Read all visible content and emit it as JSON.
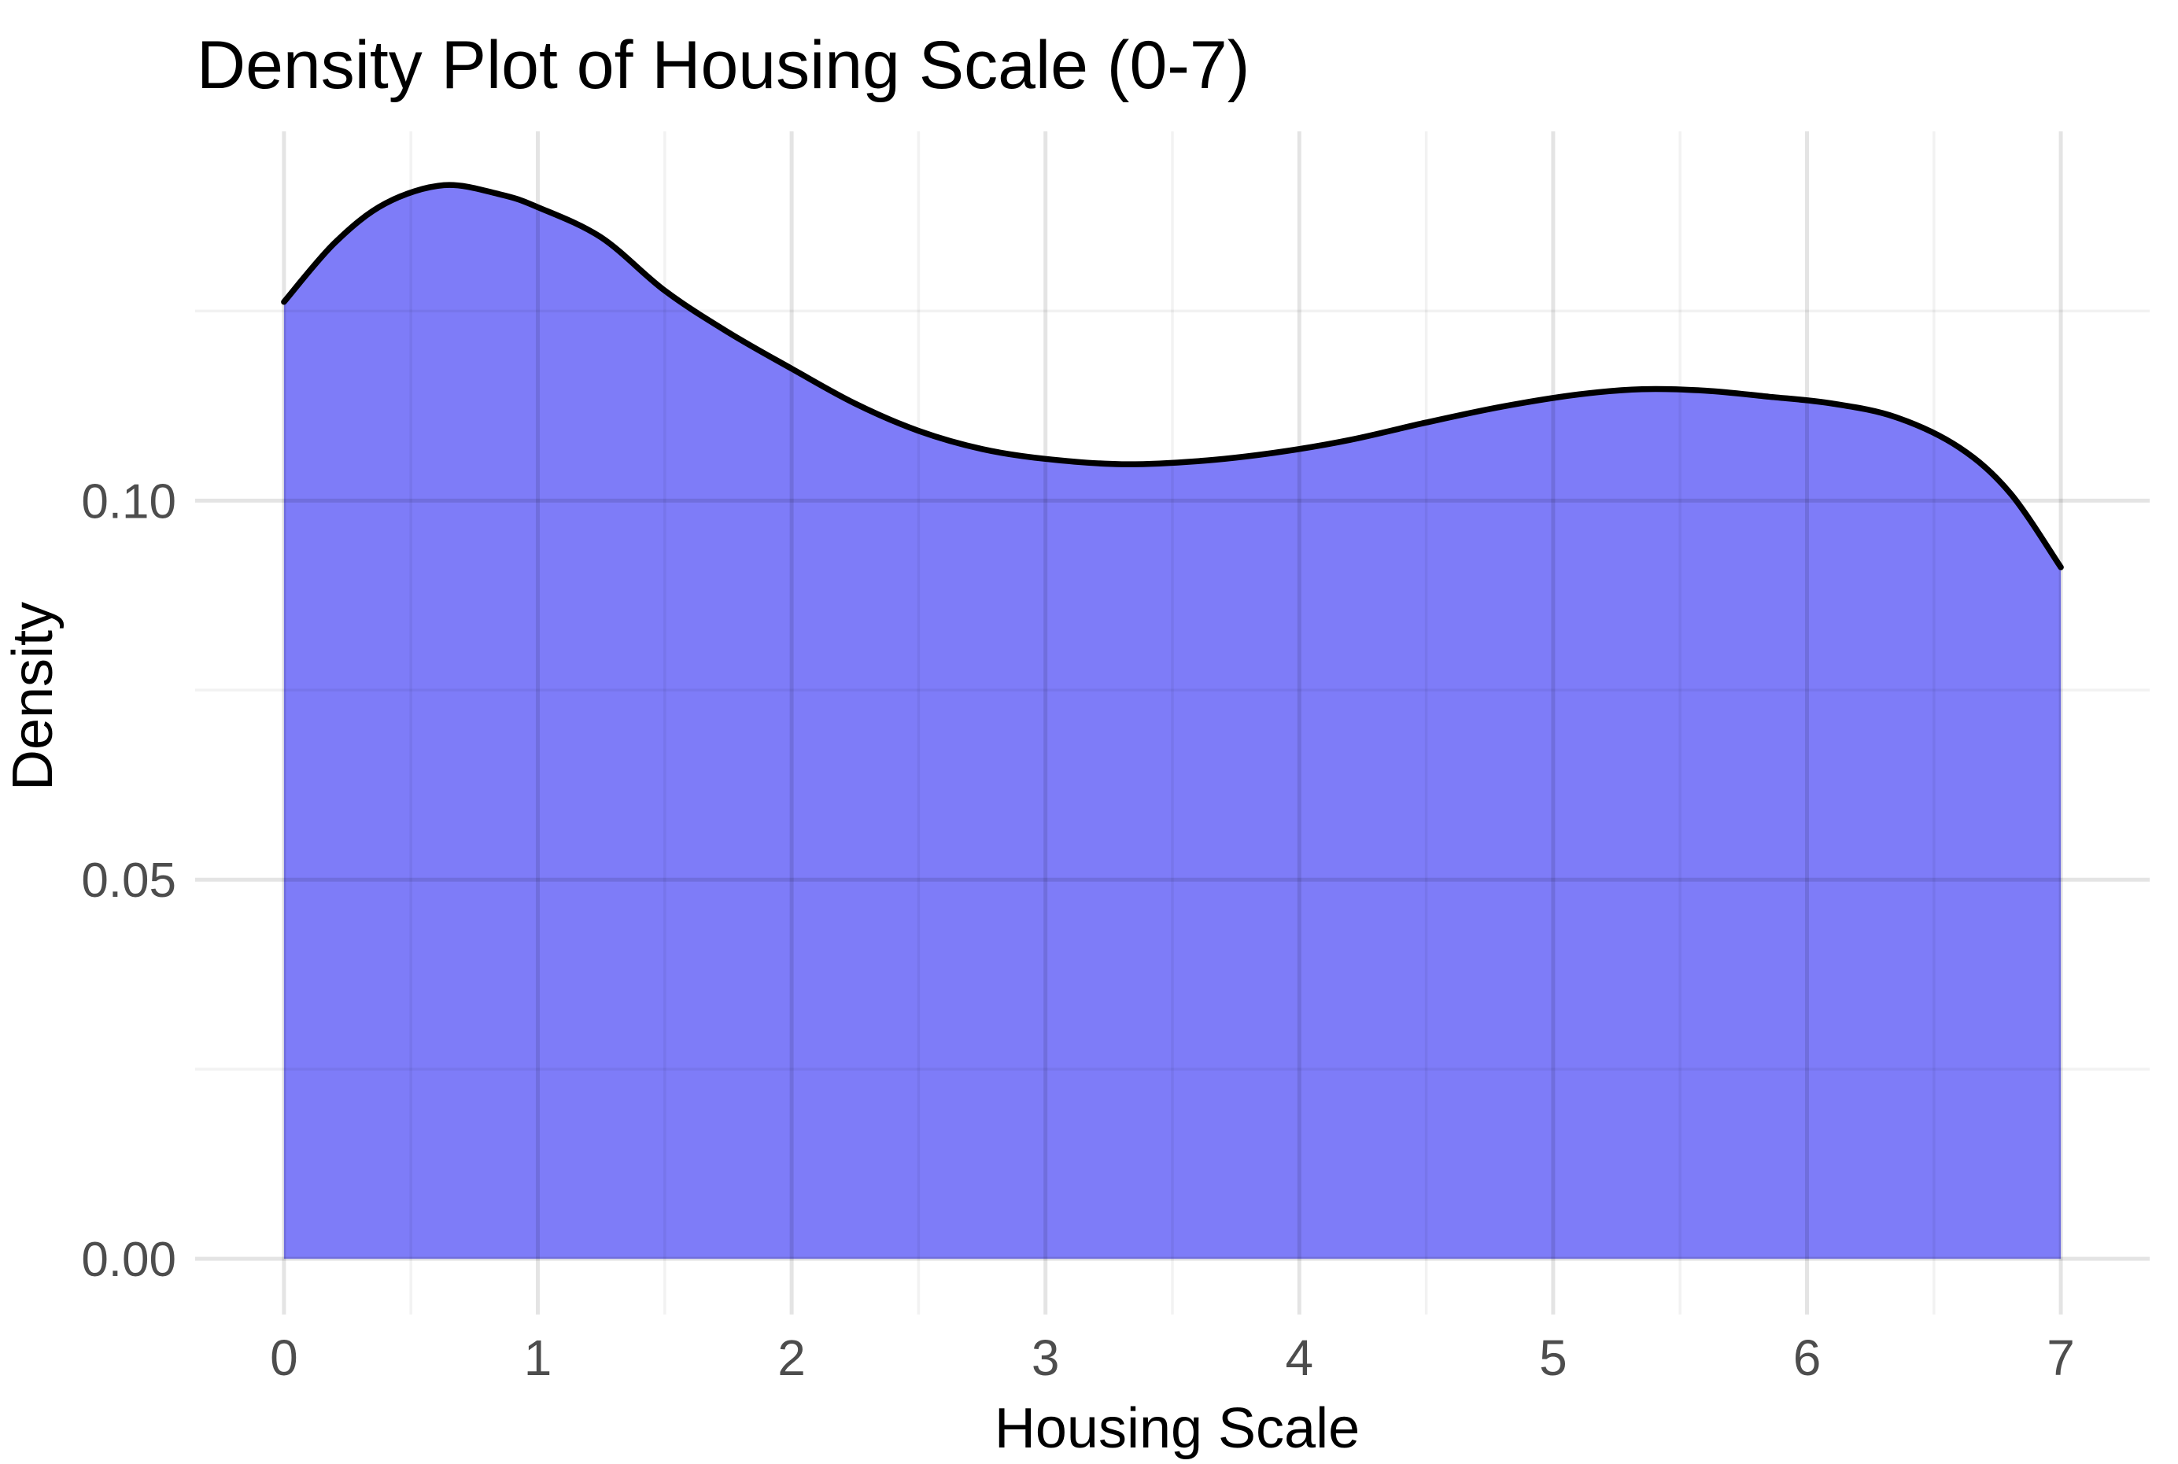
{
  "title": "Density Plot of Housing Scale (0-7)",
  "chart_data": {
    "type": "area",
    "title": "Density Plot of Housing Scale (0-7)",
    "xlabel": "Housing Scale",
    "ylabel": "Density",
    "xlim": [
      -0.35,
      7.35
    ],
    "ylim": [
      -0.00736,
      0.1487
    ],
    "x_ticks": [
      {
        "value": 0,
        "label": "0"
      },
      {
        "value": 1,
        "label": "1"
      },
      {
        "value": 2,
        "label": "2"
      },
      {
        "value": 3,
        "label": "3"
      },
      {
        "value": 4,
        "label": "4"
      },
      {
        "value": 5,
        "label": "5"
      },
      {
        "value": 6,
        "label": "6"
      },
      {
        "value": 7,
        "label": "7"
      }
    ],
    "y_ticks": [
      {
        "value": 0.0,
        "label": "0.00"
      },
      {
        "value": 0.05,
        "label": "0.05"
      },
      {
        "value": 0.1,
        "label": "0.10"
      }
    ],
    "grid": {
      "x_minor": [
        0.5,
        1.5,
        2.5,
        3.5,
        4.5,
        5.5,
        6.5
      ],
      "y_minor": [
        0.025,
        0.075,
        0.125
      ],
      "style": "major-and-minor, light gray on white, visible through fill"
    },
    "legend": "none",
    "series": [
      {
        "name": "density",
        "x": [
          0.0,
          0.2,
          0.4,
          0.63,
          0.85,
          1.0,
          1.25,
          1.5,
          1.75,
          2.0,
          2.25,
          2.5,
          2.75,
          3.0,
          3.3,
          3.6,
          3.9,
          4.2,
          4.5,
          4.8,
          5.1,
          5.35,
          5.6,
          5.85,
          6.1,
          6.35,
          6.6,
          6.8,
          7.0
        ],
        "density": [
          0.1262,
          0.134,
          0.1392,
          0.1416,
          0.1404,
          0.1387,
          0.1347,
          0.1277,
          0.1222,
          0.1174,
          0.1128,
          0.1092,
          0.1068,
          0.1055,
          0.1048,
          0.1052,
          0.1063,
          0.108,
          0.1103,
          0.1124,
          0.114,
          0.1147,
          0.1145,
          0.1137,
          0.1128,
          0.111,
          0.107,
          0.101,
          0.0912
        ]
      }
    ],
    "baseline_value": 0
  },
  "colors": {
    "fill": "#7E7CF8",
    "curve": "#000000",
    "grid_major": "rgba(0,0,0,0.105)",
    "grid_minor": "rgba(0,0,0,0.05)",
    "tick_text": "#4d4d4d",
    "title_text": "#000000",
    "background": "#ffffff"
  }
}
